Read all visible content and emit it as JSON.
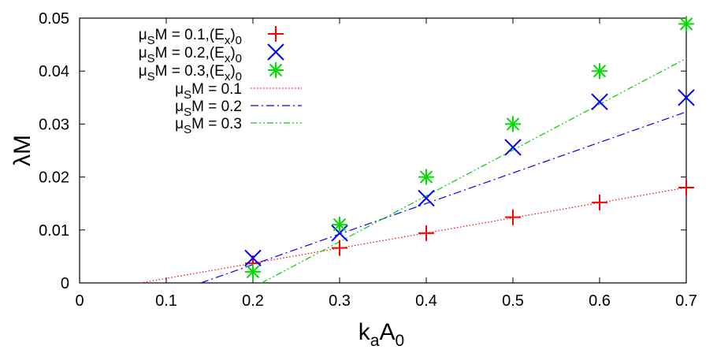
{
  "chart_data": {
    "type": "scatter",
    "xlim": [
      0,
      0.7
    ],
    "ylim": [
      0,
      0.05
    ],
    "x_ticks": [
      "0",
      "0.1",
      "0.2",
      "0.3",
      "0.4",
      "0.5",
      "0.6",
      "0.7"
    ],
    "y_ticks": [
      "0",
      "0.01",
      "0.02",
      "0.03",
      "0.04",
      "0.05"
    ],
    "x_tick_values": [
      0,
      0.1,
      0.2,
      0.3,
      0.4,
      0.5,
      0.6,
      0.7
    ],
    "y_tick_values": [
      0,
      0.01,
      0.02,
      0.03,
      0.04,
      0.05
    ],
    "xlabel": {
      "main": "k",
      "sub1": "a",
      "mid": "A",
      "sub2": "0"
    },
    "ylabel": "λM",
    "grid": false,
    "legend_position": "top-left",
    "points": [
      {
        "legend_pre": "μ",
        "legend_sub": "S",
        "legend_mid": "M = 0.1,(E",
        "legend_sub2": "x",
        "legend_end": ")",
        "legend_sub3": "0",
        "marker": "plus",
        "color": "#ff0000",
        "x": [
          0.2,
          0.3,
          0.4,
          0.5,
          0.6,
          0.7
        ],
        "y": [
          0.0037,
          0.0066,
          0.0094,
          0.0124,
          0.0152,
          0.018
        ]
      },
      {
        "legend_pre": "μ",
        "legend_sub": "S",
        "legend_mid": "M = 0.2,(E",
        "legend_sub2": "x",
        "legend_end": ")",
        "legend_sub3": "0",
        "marker": "cross",
        "color": "#0000ff",
        "x": [
          0.2,
          0.3,
          0.4,
          0.5,
          0.6,
          0.7
        ],
        "y": [
          0.0047,
          0.0094,
          0.016,
          0.0256,
          0.0342,
          0.035
        ]
      },
      {
        "legend_pre": "μ",
        "legend_sub": "S",
        "legend_mid": "M = 0.3,(E",
        "legend_sub2": "x",
        "legend_end": ")",
        "legend_sub3": "0",
        "marker": "star",
        "color": "#00dd00",
        "x": [
          0.2,
          0.3,
          0.4,
          0.5,
          0.6,
          0.7
        ],
        "y": [
          0.0021,
          0.011,
          0.02,
          0.03,
          0.04,
          0.0489
        ]
      }
    ],
    "lines": [
      {
        "legend_pre": "μ",
        "legend_sub": "S",
        "legend_end": "M = 0.1",
        "style": "dotted",
        "color": "#ff0000",
        "x": [
          0.07,
          0.7
        ],
        "y": [
          0,
          0.018
        ]
      },
      {
        "legend_pre": "μ",
        "legend_sub": "S",
        "legend_end": "M = 0.2",
        "style": "dashdot",
        "color": "#0000ff",
        "x": [
          0.14,
          0.7
        ],
        "y": [
          0,
          0.0323
        ]
      },
      {
        "legend_pre": "μ",
        "legend_sub": "S",
        "legend_end": "M = 0.3",
        "style": "dashdotdot",
        "color": "#00cc00",
        "x": [
          0.21,
          0.7
        ],
        "y": [
          0,
          0.0424
        ]
      }
    ]
  }
}
